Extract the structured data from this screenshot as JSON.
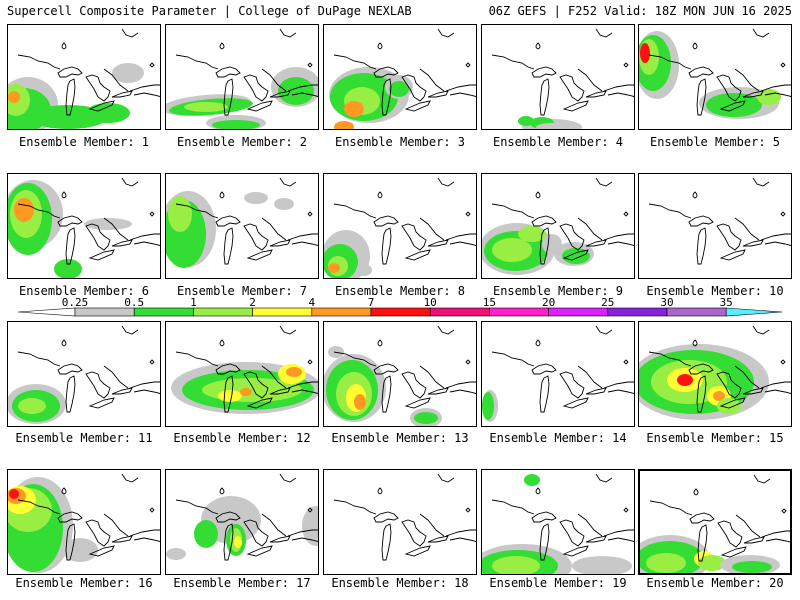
{
  "header": {
    "title_left": "Supercell Composite Parameter | College of DuPage NEXLAB",
    "title_right": "06Z GEFS | F252 Valid: 18Z MON JUN 16 2025"
  },
  "legend": {
    "ticks": [
      "0.25",
      "0.5",
      "1",
      "2",
      "4",
      "7",
      "10",
      "15",
      "20",
      "25",
      "30",
      "35"
    ],
    "colors": [
      "#c8c8c8",
      "#33dd33",
      "#99ee44",
      "#ffff33",
      "#ff9922",
      "#ff1111",
      "#ee1177",
      "#ff22cc",
      "#dd22ff",
      "#8822dd",
      "#aa66cc",
      "#55eeff"
    ]
  },
  "panels": [
    {
      "label": "Ensemble Member: 1"
    },
    {
      "label": "Ensemble Member: 2"
    },
    {
      "label": "Ensemble Member: 3"
    },
    {
      "label": "Ensemble Member: 4"
    },
    {
      "label": "Ensemble Member: 5"
    },
    {
      "label": "Ensemble Member: 6"
    },
    {
      "label": "Ensemble Member: 7"
    },
    {
      "label": "Ensemble Member: 8"
    },
    {
      "label": "Ensemble Member: 9"
    },
    {
      "label": "Ensemble Member: 10"
    },
    {
      "label": "Ensemble Member: 11"
    },
    {
      "label": "Ensemble Member: 12"
    },
    {
      "label": "Ensemble Member: 13"
    },
    {
      "label": "Ensemble Member: 14"
    },
    {
      "label": "Ensemble Member: 15"
    },
    {
      "label": "Ensemble Member: 16"
    },
    {
      "label": "Ensemble Member: 17"
    },
    {
      "label": "Ensemble Member: 18"
    },
    {
      "label": "Ensemble Member: 19"
    },
    {
      "label": "Ensemble Member: 20"
    }
  ]
}
